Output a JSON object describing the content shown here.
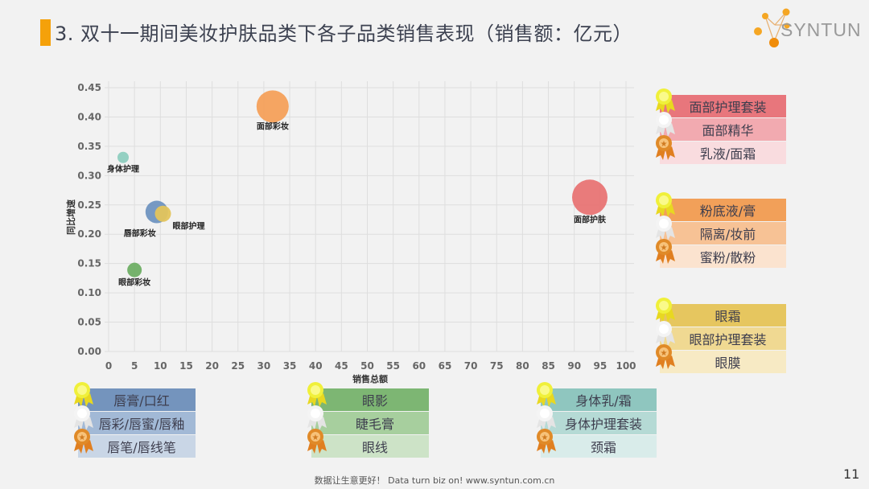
{
  "header": {
    "title": "3. 双十一期间美妆护肤品类下各子品类销售表现（销售额：亿元）",
    "accent_color": "#f5a10a",
    "logo_text": "SYNTUN"
  },
  "chart_data": {
    "type": "scatter",
    "subtype": "bubble",
    "title": "",
    "xlabel": "销售总额",
    "ylabel": "同比增速",
    "xlim": [
      0,
      100
    ],
    "ylim": [
      0,
      0.45
    ],
    "x_ticks": [
      "0",
      "5",
      "10",
      "15",
      "20",
      "25",
      "30",
      "35",
      "40",
      "45",
      "50",
      "55",
      "60",
      "65",
      "70",
      "75",
      "80",
      "85",
      "90",
      "95",
      "100"
    ],
    "y_ticks": [
      "0.00",
      "0.05",
      "0.10",
      "0.15",
      "0.20",
      "0.25",
      "0.30",
      "0.35",
      "0.40",
      "0.45"
    ],
    "grid": true,
    "points": [
      {
        "label": "面部彩妆",
        "x": 31.7,
        "y": 0.418,
        "size": 20,
        "color": "#f4a05a"
      },
      {
        "label": "身体护理",
        "x": 2.8,
        "y": 0.331,
        "size": 7,
        "color": "#8ecdbf"
      },
      {
        "label": "唇部彩妆",
        "x": 9.3,
        "y": 0.238,
        "size": 14,
        "color": "#6f93c0"
      },
      {
        "label": "眼部护理",
        "x": 10.5,
        "y": 0.235,
        "size": 10,
        "color": "#e3c45c"
      },
      {
        "label": "眼部彩妆",
        "x": 5.0,
        "y": 0.139,
        "size": 9,
        "color": "#6eae64"
      },
      {
        "label": "面部护肤",
        "x": 93.0,
        "y": 0.263,
        "size": 22,
        "color": "#e87474"
      }
    ]
  },
  "legends": {
    "face_skincare": {
      "items": [
        "面部护理套装",
        "面部精华",
        "乳液/面霜"
      ],
      "colors": [
        "#e8767c",
        "#f2aab0",
        "#f9dcdf"
      ]
    },
    "face_makeup": {
      "items": [
        "粉底液/膏",
        "隔离/妆前",
        "蜜粉/散粉"
      ],
      "colors": [
        "#f2a059",
        "#f7c295",
        "#fbe3cf"
      ]
    },
    "eye_care": {
      "items": [
        "眼霜",
        "眼部护理套装",
        "眼膜"
      ],
      "colors": [
        "#e6c65f",
        "#f0d992",
        "#f7eac4"
      ]
    },
    "lip_makeup": {
      "items": [
        "唇膏/口红",
        "唇彩/唇蜜/唇釉",
        "唇笔/唇线笔"
      ],
      "colors": [
        "#7494bd",
        "#a2b9d6",
        "#c9d6e6"
      ]
    },
    "eye_makeup": {
      "items": [
        "眼影",
        "睫毛膏",
        "眼线"
      ],
      "colors": [
        "#7db673",
        "#a7cf9e",
        "#cde3c7"
      ]
    },
    "body_care": {
      "items": [
        "身体乳/霜",
        "身体护理套装",
        "颈霜"
      ],
      "colors": [
        "#8fc6bf",
        "#b5dad5",
        "#d9ecea"
      ]
    }
  },
  "medals": [
    "gold-medal",
    "silver-medal",
    "bronze-medal"
  ],
  "footer": {
    "text": "数据让生意更好！ Data turn biz on!  www.syntun.com.cn",
    "page_number": "11"
  }
}
